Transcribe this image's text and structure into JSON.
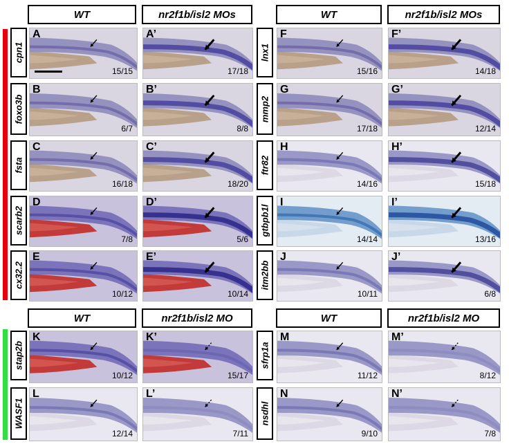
{
  "colors": {
    "red_bar": "#e8000a",
    "green_bar": "#33dd44"
  },
  "sections": {
    "top_left": {
      "hdr_wt": "WT",
      "hdr_mo": "nr2f1b/isl2 MOs",
      "rows": [
        {
          "gene": "cpn1",
          "a": "A",
          "a_count": "15/15",
          "b": "A’",
          "b_count": "17/18"
        },
        {
          "gene": "foxo3b",
          "a": "B",
          "a_count": "6/7",
          "b": "B’",
          "b_count": "8/8"
        },
        {
          "gene": "fsta",
          "a": "C",
          "a_count": "16/18",
          "b": "C’",
          "b_count": "18/20"
        },
        {
          "gene": "scarb2",
          "a": "D",
          "a_count": "7/8",
          "b": "D’",
          "b_count": "5/6"
        },
        {
          "gene": "cx32.2",
          "a": "E",
          "a_count": "10/12",
          "b": "E’",
          "b_count": "10/14"
        }
      ]
    },
    "top_right": {
      "hdr_wt": "WT",
      "hdr_mo": "nr2f1b/isl2 MOs",
      "rows": [
        {
          "gene": "lnx1",
          "a": "F",
          "a_count": "15/16",
          "b": "F’",
          "b_count": "14/18"
        },
        {
          "gene": "mmp2",
          "a": "G",
          "a_count": "17/18",
          "b": "G’",
          "b_count": "12/14"
        },
        {
          "gene": "ftr82",
          "a": "H",
          "a_count": "14/16",
          "b": "H’",
          "b_count": "15/18"
        },
        {
          "gene": "gtbpb1l",
          "a": "I",
          "a_count": "14/14",
          "b": "I’",
          "b_count": "13/16"
        },
        {
          "gene": "itm2bb",
          "a": "J",
          "a_count": "10/11",
          "b": "J’",
          "b_count": "6/8"
        }
      ]
    },
    "bottom_left": {
      "hdr_wt": "WT",
      "hdr_mo": "nr2f1b/isl2 MO",
      "rows": [
        {
          "gene": "stap2b",
          "a": "K",
          "a_count": "10/12",
          "b": "K’",
          "b_count": "15/17"
        },
        {
          "gene": "WASF1",
          "a": "L",
          "a_count": "12/14",
          "b": "L’",
          "b_count": "7/11"
        }
      ]
    },
    "bottom_right": {
      "hdr_wt": "WT",
      "hdr_mo": "nr2f1b/isl2 MO",
      "rows": [
        {
          "gene": "sfrp1a",
          "a": "M",
          "a_count": "11/12",
          "b": "M’",
          "b_count": "8/12"
        },
        {
          "gene": "nsdhl",
          "a": "N",
          "a_count": "9/10",
          "b": "N’",
          "b_count": "7/8"
        }
      ]
    }
  }
}
